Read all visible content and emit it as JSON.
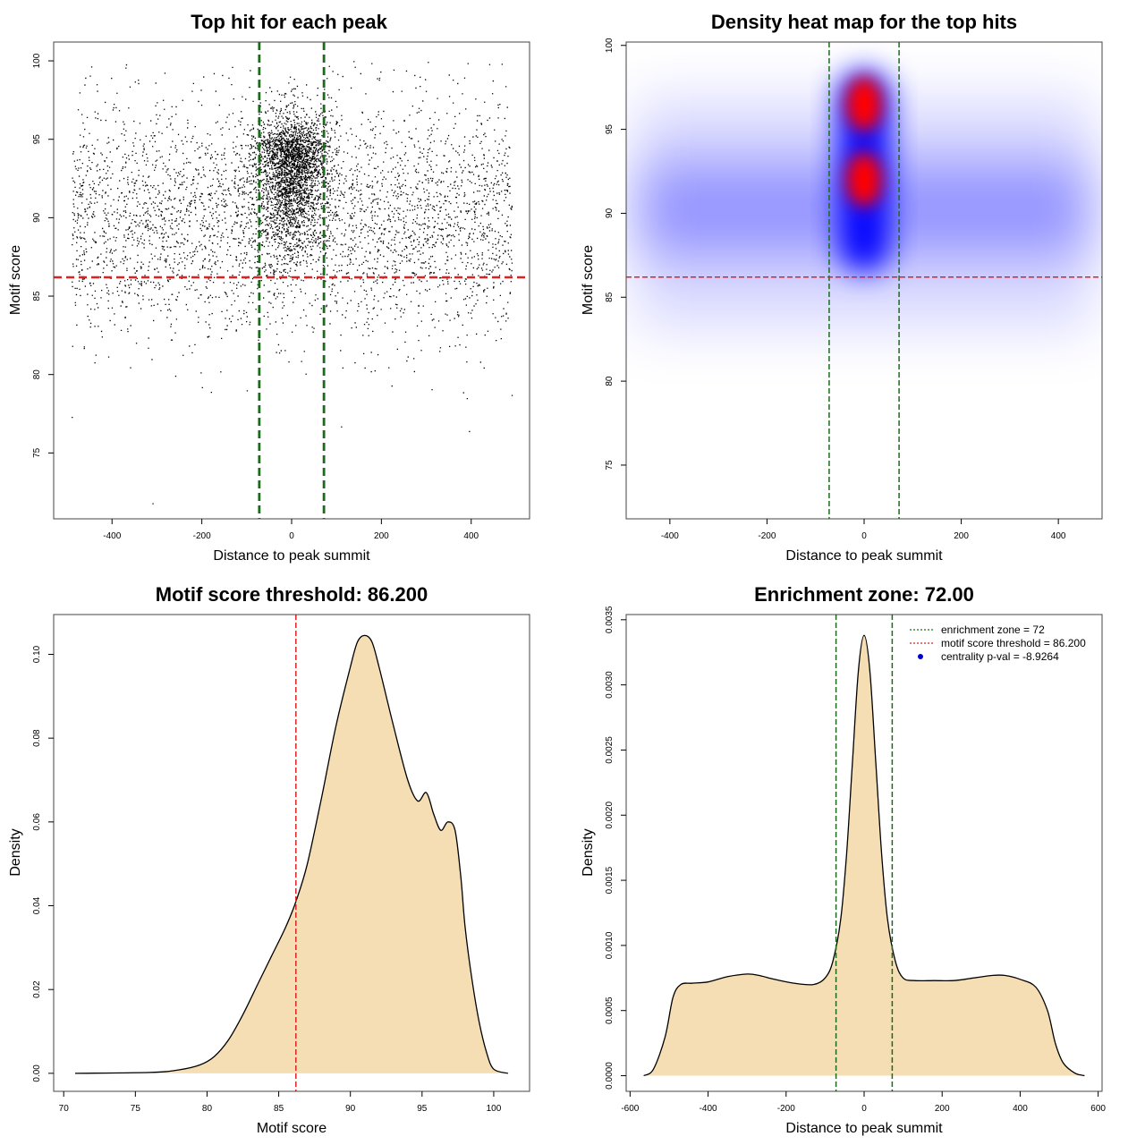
{
  "chart_data": [
    {
      "type": "scatter",
      "title": "Top hit for each peak",
      "xlabel": "Distance to peak summit",
      "ylabel": "Motif score",
      "xlim": [
        -530,
        530
      ],
      "ylim": [
        70.8,
        101.2
      ],
      "xticks": [
        -400,
        -200,
        0,
        200,
        400
      ],
      "yticks": [
        75,
        80,
        85,
        90,
        95,
        100
      ],
      "vlines": [
        -72,
        72
      ],
      "hline": 86.2,
      "point_count_approx": 30000,
      "point_distribution": {
        "background": {
          "x_range": [
            -490,
            490
          ],
          "y_mode": 90,
          "y_range": [
            77,
            100
          ]
        },
        "central_cluster": {
          "x_center": 0,
          "x_spread": 40,
          "y_mode": 95,
          "y_range": [
            86,
            100
          ]
        }
      },
      "line_colors": {
        "vlines": "#1a6b1a",
        "hline": "#dd2222"
      }
    },
    {
      "type": "heatmap",
      "title": "Density heat map for the top hits",
      "xlabel": "Distance to peak summit",
      "ylabel": "Motif score",
      "xlim": [
        -490,
        490
      ],
      "ylim": [
        71.8,
        100.2
      ],
      "xticks": [
        -400,
        -200,
        0,
        200,
        400
      ],
      "yticks": [
        75,
        80,
        85,
        90,
        95,
        100
      ],
      "vlines": [
        -72,
        72
      ],
      "hline": 86.2,
      "hotspots": [
        {
          "x": 0,
          "y": 96.5,
          "level": "high"
        },
        {
          "x": 0,
          "y": 92,
          "level": "high"
        }
      ],
      "colors": {
        "low": "#ffffff",
        "mid": "#0000ff",
        "high": "#ff0000"
      },
      "line_colors": {
        "vlines": "#1a6b1a",
        "hline": "#dd2222"
      }
    },
    {
      "type": "area",
      "title": "Motif score threshold: 86.200",
      "xlabel": "Motif score",
      "ylabel": "Density",
      "xlim": [
        69.3,
        102.5
      ],
      "ylim": [
        -0.0043,
        0.1095
      ],
      "xticks": [
        70,
        75,
        80,
        85,
        90,
        95,
        100
      ],
      "yticks": [
        0.0,
        0.02,
        0.04,
        0.06,
        0.08,
        0.1
      ],
      "ytick_labels": [
        "0.00",
        "0.02",
        "0.04",
        "0.06",
        "0.08",
        "0.10"
      ],
      "vline": 86.2,
      "x": [
        70.8,
        76,
        78,
        79.5,
        80.5,
        81.5,
        82.5,
        83.5,
        84.5,
        85.5,
        86.2,
        87,
        88,
        89,
        90,
        90.5,
        91,
        91.5,
        92,
        93,
        94,
        94.7,
        95.3,
        95.8,
        96.3,
        96.8,
        97.3,
        97.7,
        98,
        98.5,
        99,
        99.5,
        100,
        101
      ],
      "y": [
        0.0,
        0.0002,
        0.0008,
        0.002,
        0.004,
        0.008,
        0.014,
        0.021,
        0.028,
        0.035,
        0.041,
        0.05,
        0.066,
        0.083,
        0.097,
        0.103,
        0.1045,
        0.103,
        0.097,
        0.083,
        0.07,
        0.065,
        0.067,
        0.062,
        0.058,
        0.06,
        0.058,
        0.047,
        0.035,
        0.022,
        0.012,
        0.005,
        0.001,
        0.0
      ],
      "fill_color": "#f5deb3",
      "line_colors": {
        "vline": "#dd2222"
      }
    },
    {
      "type": "area",
      "title": "Enrichment zone: 72.00",
      "xlabel": "Distance to peak summit",
      "ylabel": "Density",
      "xlim": [
        -610,
        610
      ],
      "ylim": [
        -0.00012,
        0.00354
      ],
      "xticks": [
        -600,
        -400,
        -200,
        0,
        200,
        400,
        600
      ],
      "yticks": [
        0.0,
        0.0005,
        0.001,
        0.0015,
        0.002,
        0.0025,
        0.003,
        0.0035
      ],
      "ytick_labels": [
        "0.0000",
        "0.0005",
        "0.0010",
        "0.0015",
        "0.0020",
        "0.0025",
        "0.0030",
        "0.0035"
      ],
      "vlines": [
        -72,
        72
      ],
      "x": [
        -565,
        -540,
        -510,
        -490,
        -470,
        -440,
        -400,
        -350,
        -300,
        -270,
        -230,
        -180,
        -130,
        -100,
        -80,
        -60,
        -45,
        -30,
        -15,
        0,
        15,
        30,
        45,
        60,
        80,
        100,
        130,
        180,
        230,
        280,
        330,
        360,
        400,
        440,
        470,
        490,
        510,
        540,
        565
      ],
      "y": [
        0.0,
        5e-05,
        0.0003,
        0.0006,
        0.0007,
        0.00071,
        0.00072,
        0.00076,
        0.00078,
        0.00077,
        0.00074,
        0.00071,
        0.0007,
        0.00075,
        0.00088,
        0.0012,
        0.0017,
        0.0024,
        0.0031,
        0.00338,
        0.0031,
        0.0024,
        0.0017,
        0.0012,
        0.00088,
        0.00075,
        0.00073,
        0.00073,
        0.00073,
        0.00075,
        0.00077,
        0.00077,
        0.00074,
        0.00068,
        0.0005,
        0.00025,
        0.0001,
        2e-05,
        0.0
      ],
      "fill_color": "#f5deb3",
      "line_colors": {
        "vlines": "#1a6b1a"
      },
      "legend": {
        "placement": "top-right",
        "entries": [
          {
            "label": "enrichment zone = 72",
            "style": "dotted-line",
            "color": "#1a6b1a"
          },
          {
            "label": "motif score threshold = 86.200",
            "style": "dotted-line",
            "color": "#dd2222"
          },
          {
            "label": "centrality p-val = -8.9264",
            "style": "point",
            "color": "#0000cc"
          }
        ]
      }
    }
  ]
}
